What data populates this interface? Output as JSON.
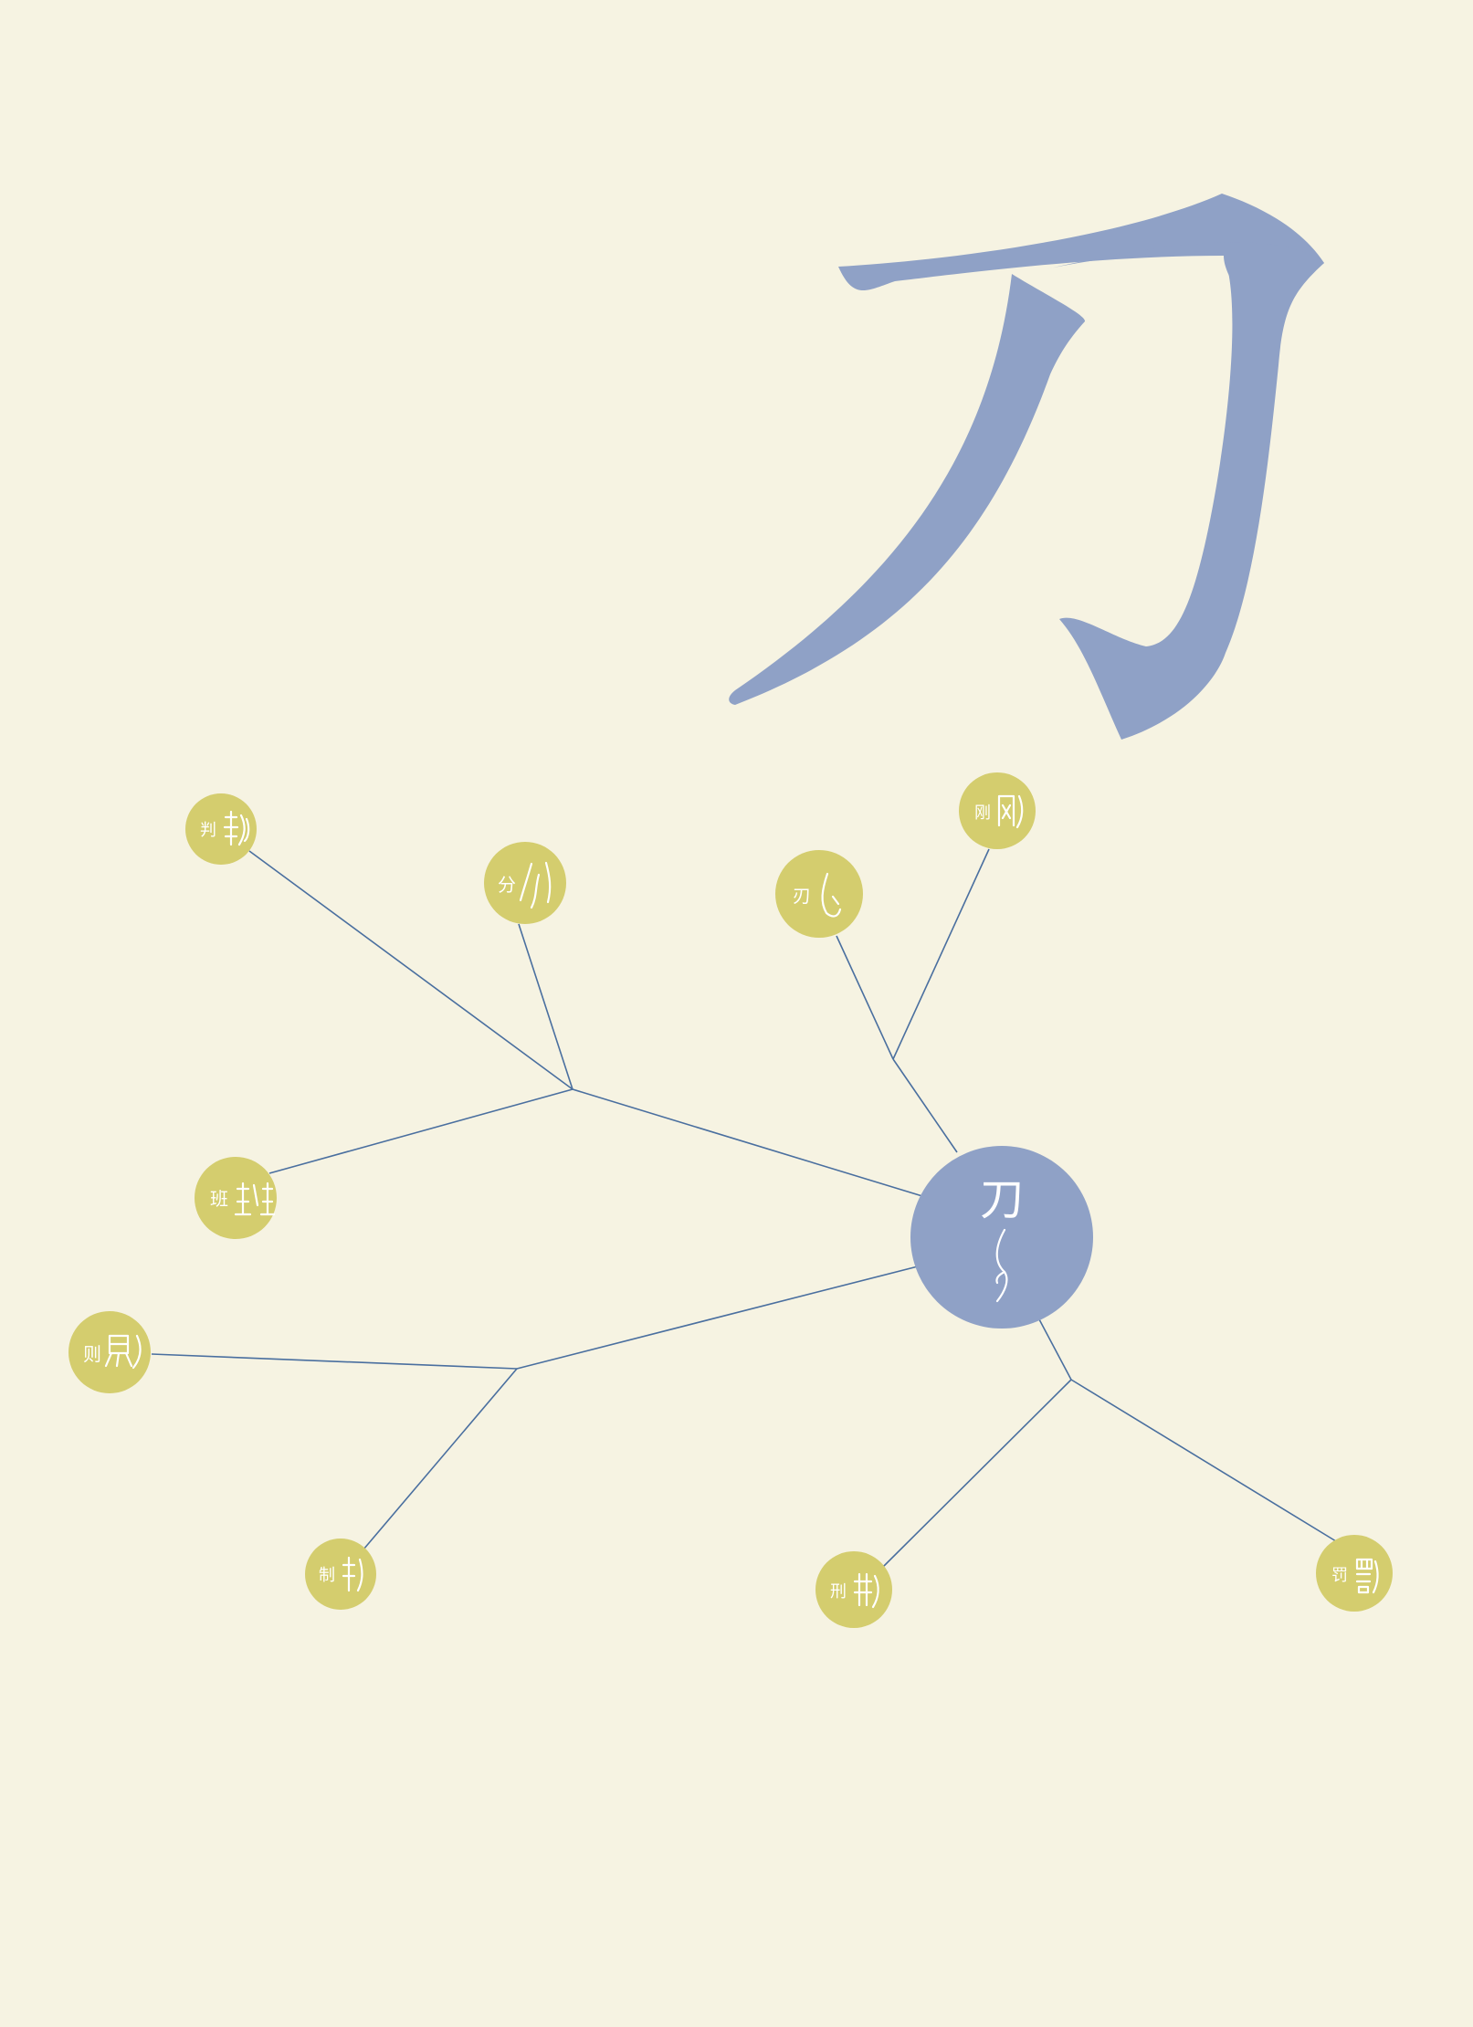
{
  "title_character": "刀",
  "root": {
    "modern": "刀",
    "ancient_icon": "oracle-bone-dao-icon"
  },
  "derivatives": [
    {
      "id": "pan",
      "modern": "判",
      "ancient_icon": "oracle-bone-pan-icon"
    },
    {
      "id": "fen",
      "modern": "分",
      "ancient_icon": "oracle-bone-fen-icon"
    },
    {
      "id": "ren",
      "modern": "刃",
      "ancient_icon": "oracle-bone-ren-icon"
    },
    {
      "id": "gang",
      "modern": "刚",
      "ancient_icon": "oracle-bone-gang-icon"
    },
    {
      "id": "ban",
      "modern": "班",
      "ancient_icon": "oracle-bone-ban-icon"
    },
    {
      "id": "ze",
      "modern": "则",
      "ancient_icon": "oracle-bone-ze-icon"
    },
    {
      "id": "zhi",
      "modern": "制",
      "ancient_icon": "oracle-bone-zhi-icon"
    },
    {
      "id": "xing",
      "modern": "刑",
      "ancient_icon": "oracle-bone-xing-icon"
    },
    {
      "id": "fa",
      "modern": "罚",
      "ancient_icon": "oracle-bone-fa-icon"
    }
  ],
  "colors": {
    "background": "#f6f3e2",
    "accent_blue": "#8fa1c6",
    "node_yellow": "#d4cd6e",
    "line": "#4a6f9f",
    "glyph": "#ffffff"
  }
}
